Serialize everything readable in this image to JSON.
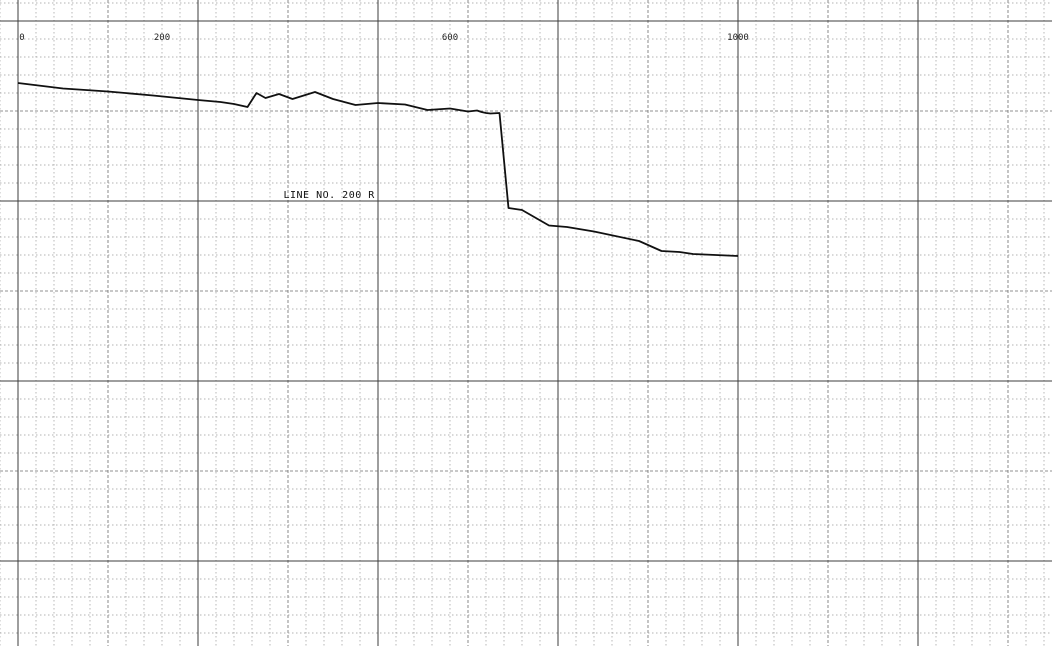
{
  "chart_data": {
    "type": "line",
    "title": "",
    "xlabel": "",
    "ylabel": "",
    "x_ticks": [
      {
        "value": 0,
        "label": "0"
      },
      {
        "value": 200,
        "label": "200"
      },
      {
        "value": 600,
        "label": "600"
      },
      {
        "value": 1000,
        "label": "1000"
      }
    ],
    "xlim": [
      0,
      1150
    ],
    "ylim": [
      0,
      1000
    ],
    "grid": true,
    "annotation": "LINE NO. 200 R",
    "annotation_x": 295,
    "series": [
      {
        "name": "",
        "x": [
          0,
          50,
          100,
          150,
          200,
          225,
          240,
          255,
          265,
          275,
          290,
          305,
          330,
          350,
          375,
          400,
          430,
          455,
          480,
          500,
          510,
          515,
          520,
          525,
          535,
          545,
          560,
          590,
          610,
          640,
          690,
          715,
          735,
          750,
          800
        ],
        "y": [
          600,
          589,
          583,
          575,
          566,
          562,
          558,
          552,
          580,
          570,
          578,
          568,
          582,
          568,
          556,
          560,
          557,
          546,
          549,
          543,
          545,
          542,
          540,
          539,
          540,
          350,
          346,
          315,
          312,
          303,
          284,
          264,
          262,
          258,
          254
        ]
      }
    ]
  }
}
